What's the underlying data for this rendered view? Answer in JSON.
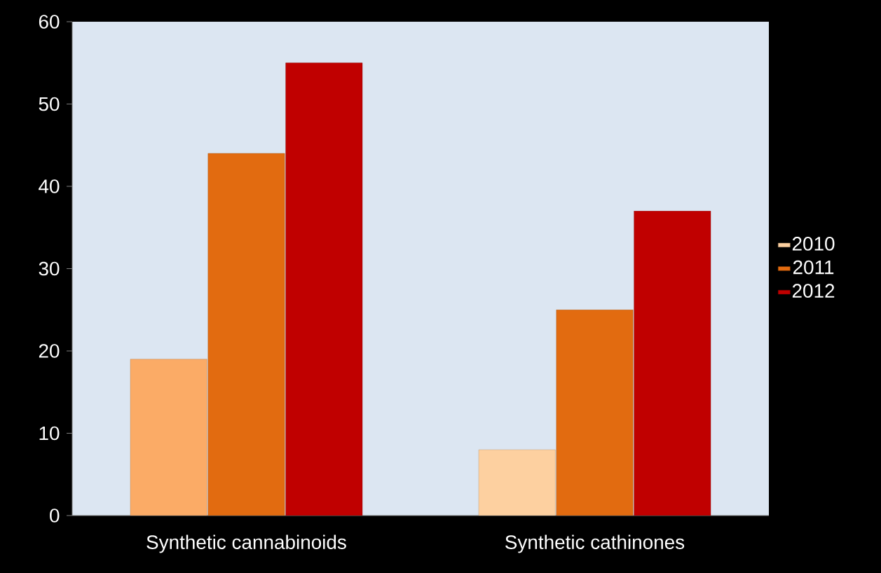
{
  "chart_data": {
    "type": "bar",
    "categories": [
      "Synthetic cannabinoids",
      "Synthetic cathinones"
    ],
    "series": [
      {
        "name": "2010",
        "color": "#fdd0a0",
        "colors": [
          "#fbab66",
          "#fdd0a0"
        ],
        "values": [
          19,
          8
        ]
      },
      {
        "name": "2011",
        "color": "#e26b10",
        "values": [
          44,
          25
        ]
      },
      {
        "name": "2012",
        "color": "#c00000",
        "values": [
          55,
          37
        ]
      }
    ],
    "ylim": [
      0,
      60
    ],
    "yticks": [
      0,
      10,
      20,
      30,
      40,
      50,
      60
    ],
    "grid": false,
    "legend": "right"
  }
}
